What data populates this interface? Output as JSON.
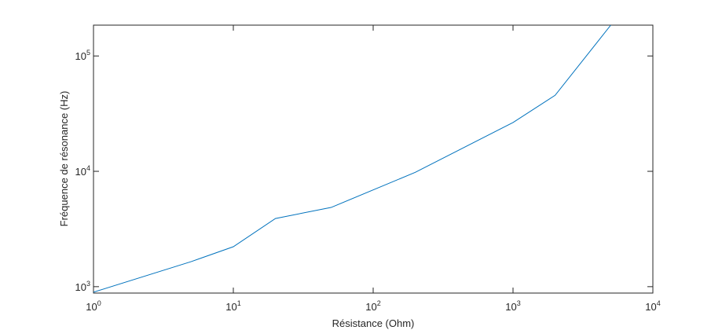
{
  "chart_data": {
    "type": "line",
    "x_label": "Résistance (Ohm)",
    "y_label": "Fréquence de résonance (Hz)",
    "x": [
      1,
      5,
      10,
      20,
      50,
      200,
      1000,
      2000,
      5000
    ],
    "series": [
      {
        "color": "#0072bd",
        "values": [
          896,
          1650,
          2220,
          3900,
          4860,
          9800,
          26500,
          45600,
          185000
        ]
      }
    ],
    "xlim": [
      1,
      10000
    ],
    "ylim": [
      880,
      185000
    ],
    "xscale": "log",
    "yscale": "log",
    "xticks": [
      {
        "value": 1,
        "label": "10^0"
      },
      {
        "value": 10,
        "label": "10^1"
      },
      {
        "value": 100,
        "label": "10^2"
      },
      {
        "value": 1000,
        "label": "10^3"
      },
      {
        "value": 10000,
        "label": "10^4"
      }
    ],
    "yticks": [
      {
        "value": 1000,
        "label": "10^3"
      },
      {
        "value": 10000,
        "label": "10^4"
      },
      {
        "value": 100000,
        "label": "10^5"
      }
    ]
  }
}
